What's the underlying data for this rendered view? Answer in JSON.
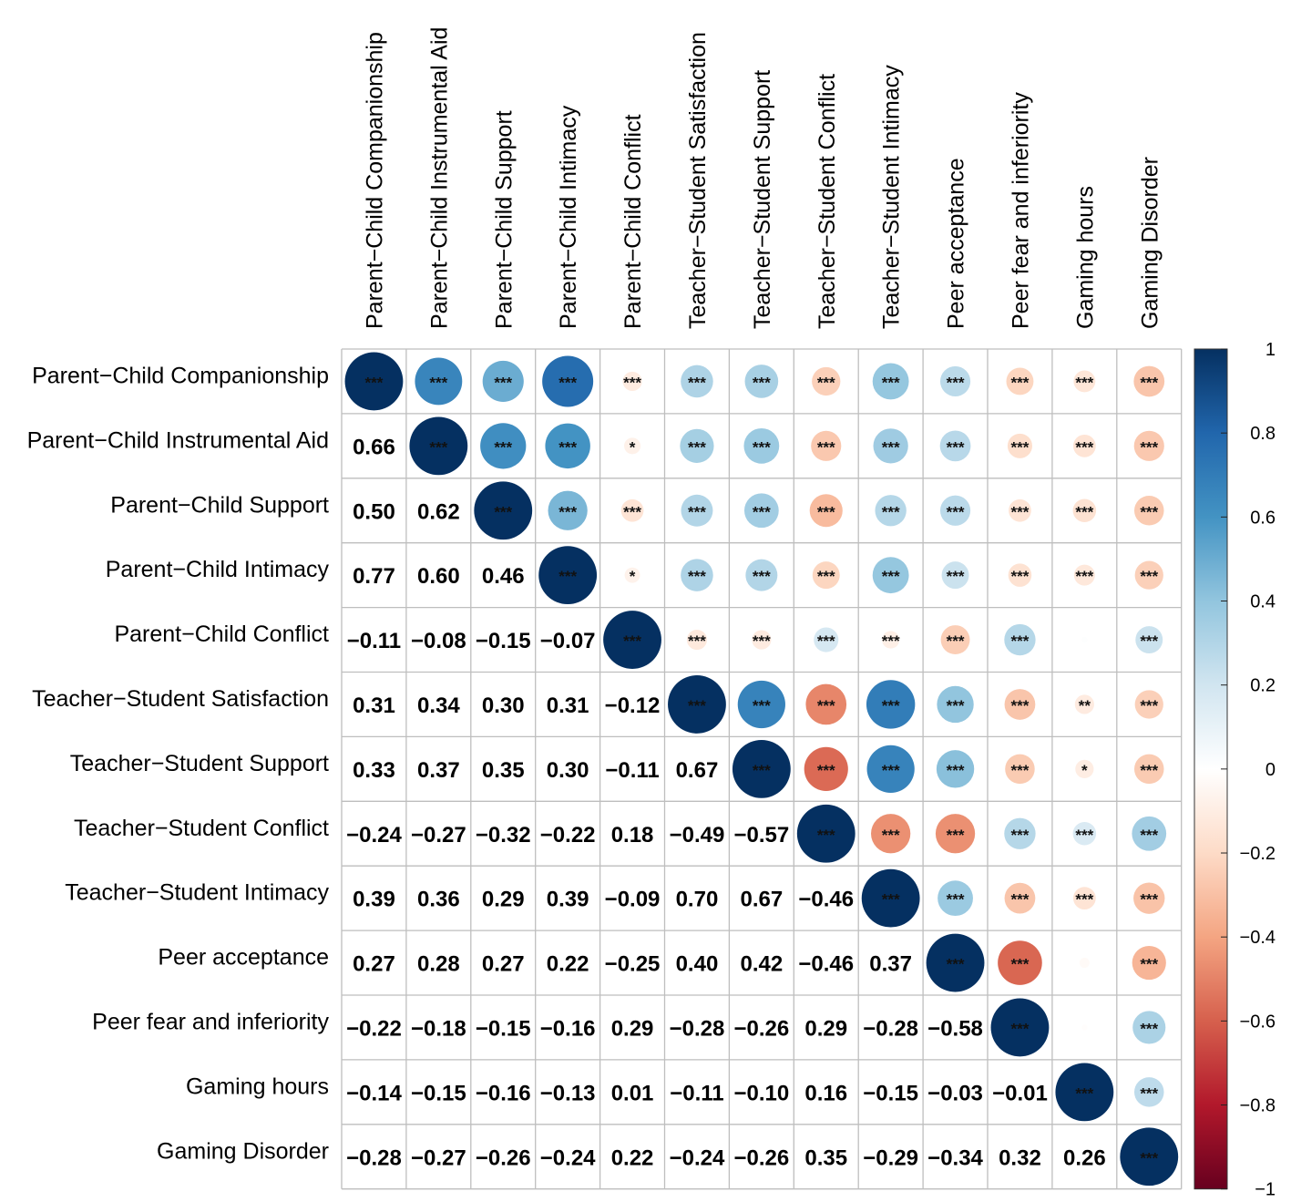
{
  "chart_data": {
    "type": "heatmap",
    "subtype": "correlation-matrix (lower: coefficients, upper: circles with significance stars)",
    "variables": [
      "Parent−Child Companionship",
      "Parent−Child Instrumental Aid",
      "Parent−Child Support",
      "Parent−Child Intimacy",
      "Parent−Child Conflict",
      "Teacher−Student Satisfaction",
      "Teacher−Student Support",
      "Teacher−Student Conflict",
      "Teacher−Student Intimacy",
      "Peer acceptance",
      "Peer fear and inferiority",
      "Gaming hours",
      "Gaming Disorder"
    ],
    "matrix": [
      [
        1,
        0.66,
        0.5,
        0.77,
        -0.11,
        0.31,
        0.33,
        -0.24,
        0.39,
        0.27,
        -0.22,
        -0.14,
        -0.28
      ],
      [
        0.66,
        1,
        0.62,
        0.6,
        -0.08,
        0.34,
        0.37,
        -0.27,
        0.36,
        0.28,
        -0.18,
        -0.15,
        -0.27
      ],
      [
        0.5,
        0.62,
        1,
        0.46,
        -0.15,
        0.3,
        0.35,
        -0.32,
        0.29,
        0.27,
        -0.15,
        -0.16,
        -0.26
      ],
      [
        0.77,
        0.6,
        0.46,
        1,
        -0.07,
        0.31,
        0.3,
        -0.22,
        0.39,
        0.22,
        -0.16,
        -0.13,
        -0.24
      ],
      [
        -0.11,
        -0.08,
        -0.15,
        -0.07,
        1,
        -0.12,
        -0.11,
        0.18,
        -0.09,
        -0.25,
        0.29,
        0.01,
        0.22
      ],
      [
        0.31,
        0.34,
        0.3,
        0.31,
        -0.12,
        1,
        0.67,
        -0.49,
        0.7,
        0.4,
        -0.28,
        -0.11,
        -0.24
      ],
      [
        0.33,
        0.37,
        0.35,
        0.3,
        -0.11,
        0.67,
        1,
        -0.57,
        0.67,
        0.42,
        -0.26,
        -0.1,
        -0.26
      ],
      [
        -0.24,
        -0.27,
        -0.32,
        -0.22,
        0.18,
        -0.49,
        -0.57,
        1,
        -0.46,
        -0.46,
        0.29,
        0.16,
        0.35
      ],
      [
        0.39,
        0.36,
        0.29,
        0.39,
        -0.09,
        0.7,
        0.67,
        -0.46,
        1,
        0.37,
        -0.28,
        -0.15,
        -0.29
      ],
      [
        0.27,
        0.28,
        0.27,
        0.22,
        -0.25,
        0.4,
        0.42,
        -0.46,
        0.37,
        1,
        -0.58,
        -0.03,
        -0.34
      ],
      [
        -0.22,
        -0.18,
        -0.15,
        -0.16,
        0.29,
        -0.28,
        -0.26,
        0.29,
        -0.28,
        -0.58,
        1,
        -0.01,
        0.32
      ],
      [
        -0.14,
        -0.15,
        -0.16,
        -0.13,
        0.01,
        -0.11,
        -0.1,
        0.16,
        -0.15,
        -0.03,
        -0.01,
        1,
        0.26
      ],
      [
        -0.28,
        -0.27,
        -0.26,
        -0.24,
        0.22,
        -0.24,
        -0.26,
        0.35,
        -0.29,
        -0.34,
        0.32,
        0.26,
        1
      ]
    ],
    "lower_triangle_labels": [
      [],
      [
        "0.66"
      ],
      [
        "0.50",
        "0.62"
      ],
      [
        "0.77",
        "0.60",
        "0.46"
      ],
      [
        "−0.11",
        "−0.08",
        "−0.15",
        "−0.07"
      ],
      [
        "0.31",
        "0.34",
        "0.30",
        "0.31",
        "−0.12"
      ],
      [
        "0.33",
        "0.37",
        "0.35",
        "0.30",
        "−0.11",
        "0.67"
      ],
      [
        "−0.24",
        "−0.27",
        "−0.32",
        "−0.22",
        "0.18",
        "−0.49",
        "−0.57"
      ],
      [
        "0.39",
        "0.36",
        "0.29",
        "0.39",
        "−0.09",
        "0.70",
        "0.67",
        "−0.46"
      ],
      [
        "0.27",
        "0.28",
        "0.27",
        "0.22",
        "−0.25",
        "0.40",
        "0.42",
        "−0.46",
        "0.37"
      ],
      [
        "−0.22",
        "−0.18",
        "−0.15",
        "−0.16",
        "0.29",
        "−0.28",
        "−0.26",
        "0.29",
        "−0.28",
        "−0.58"
      ],
      [
        "−0.14",
        "−0.15",
        "−0.16",
        "−0.13",
        "0.01",
        "−0.11",
        "−0.10",
        "0.16",
        "−0.15",
        "−0.03",
        "−0.01"
      ],
      [
        "−0.28",
        "−0.27",
        "−0.26",
        "−0.24",
        "0.22",
        "−0.24",
        "−0.26",
        "0.35",
        "−0.29",
        "−0.34",
        "0.32",
        "0.26"
      ]
    ],
    "significance": [
      [
        "***",
        "***",
        "***",
        "***",
        "***",
        "***",
        "***",
        "***",
        "***",
        "***",
        "***",
        "***",
        "***"
      ],
      [
        "***",
        "***",
        "***",
        "***",
        "*",
        "***",
        "***",
        "***",
        "***",
        "***",
        "***",
        "***",
        "***"
      ],
      [
        "***",
        "***",
        "***",
        "***",
        "***",
        "***",
        "***",
        "***",
        "***",
        "***",
        "***",
        "***",
        "***"
      ],
      [
        "***",
        "***",
        "***",
        "***",
        "*",
        "***",
        "***",
        "***",
        "***",
        "***",
        "***",
        "***",
        "***"
      ],
      [
        "***",
        "*",
        "***",
        "*",
        "***",
        "***",
        "***",
        "***",
        "***",
        "***",
        "***",
        "",
        "***"
      ],
      [
        "***",
        "***",
        "***",
        "***",
        "***",
        "***",
        "***",
        "***",
        "***",
        "***",
        "***",
        "**",
        "***"
      ],
      [
        "***",
        "***",
        "***",
        "***",
        "***",
        "***",
        "***",
        "***",
        "***",
        "***",
        "***",
        "*",
        "***"
      ],
      [
        "***",
        "***",
        "***",
        "***",
        "***",
        "***",
        "***",
        "***",
        "***",
        "***",
        "***",
        "***",
        "***"
      ],
      [
        "***",
        "***",
        "***",
        "***",
        "***",
        "***",
        "***",
        "***",
        "***",
        "***",
        "***",
        "***",
        "***"
      ],
      [
        "***",
        "***",
        "***",
        "***",
        "***",
        "***",
        "***",
        "***",
        "***",
        "***",
        "***",
        "",
        "***"
      ],
      [
        "***",
        "***",
        "***",
        "***",
        "***",
        "***",
        "***",
        "***",
        "***",
        "***",
        "***",
        "",
        "***"
      ],
      [
        "***",
        "***",
        "***",
        "***",
        "",
        "**",
        "*",
        "***",
        "***",
        "",
        "",
        "***",
        "***"
      ],
      [
        "***",
        "***",
        "***",
        "***",
        "***",
        "***",
        "***",
        "***",
        "***",
        "***",
        "***",
        "***",
        "***"
      ]
    ],
    "colorbar": {
      "range": [
        -1,
        1
      ],
      "ticks": [
        "1",
        "0.8",
        "0.6",
        "0.4",
        "0.2",
        "0",
        "−0.2",
        "−0.4",
        "−0.6",
        "−0.8",
        "−1"
      ],
      "tick_values": [
        1,
        0.8,
        0.6,
        0.4,
        0.2,
        0,
        -0.2,
        -0.4,
        -0.6,
        -0.8,
        -1
      ],
      "colors_high_to_low": [
        "#053061",
        "#2166AC",
        "#4393C3",
        "#92C5DE",
        "#D1E5F0",
        "#FFFFFF",
        "#FDDBC7",
        "#F4A582",
        "#D6604D",
        "#B2182B",
        "#67001F"
      ]
    },
    "grid_color": "#BEBEBE",
    "text_color": "#000000"
  }
}
